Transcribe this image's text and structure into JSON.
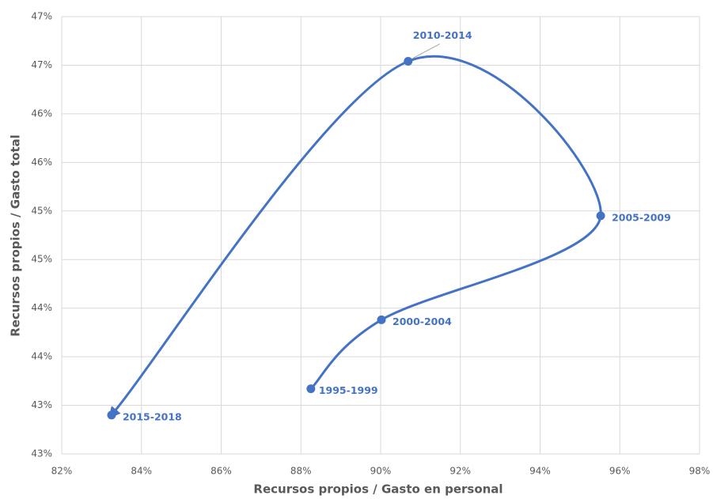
{
  "chart_data": {
    "type": "scatter",
    "connected": true,
    "smooth": true,
    "arrow_end": true,
    "x_label": "Recursos propios / Gasto en personal",
    "y_label": "Recursos propios / Gasto total",
    "x": [
      88.25,
      90.02,
      95.52,
      90.69,
      83.25
    ],
    "values": [
      43.17,
      43.88,
      44.95,
      46.54,
      42.9
    ],
    "point_labels": [
      "1995-1999",
      "2000-2004",
      "2005-2009",
      "2010-2014",
      "2015-2018"
    ],
    "color": "#4472c4",
    "xlim": [
      82,
      98
    ],
    "xticks": [
      {
        "value": 82,
        "label": "82%"
      },
      {
        "value": 84,
        "label": "84%"
      },
      {
        "value": 86,
        "label": "86%"
      },
      {
        "value": 88,
        "label": "88%"
      },
      {
        "value": 90,
        "label": "90%"
      },
      {
        "value": 92,
        "label": "92%"
      },
      {
        "value": 94,
        "label": "94%"
      },
      {
        "value": 96,
        "label": "96%"
      },
      {
        "value": 98,
        "label": "98%"
      }
    ],
    "ylim": [
      42.5,
      47
    ],
    "yticks": [
      {
        "value": 42.5,
        "label": "43%"
      },
      {
        "value": 43,
        "label": "43%"
      },
      {
        "value": 43.5,
        "label": "44%"
      },
      {
        "value": 44,
        "label": "44%"
      },
      {
        "value": 44.5,
        "label": "45%"
      },
      {
        "value": 45,
        "label": "45%"
      },
      {
        "value": 45.5,
        "label": "46%"
      },
      {
        "value": 46,
        "label": "46%"
      },
      {
        "value": 46.5,
        "label": "47%"
      },
      {
        "value": 47,
        "label": "47%"
      }
    ],
    "grid": true
  }
}
